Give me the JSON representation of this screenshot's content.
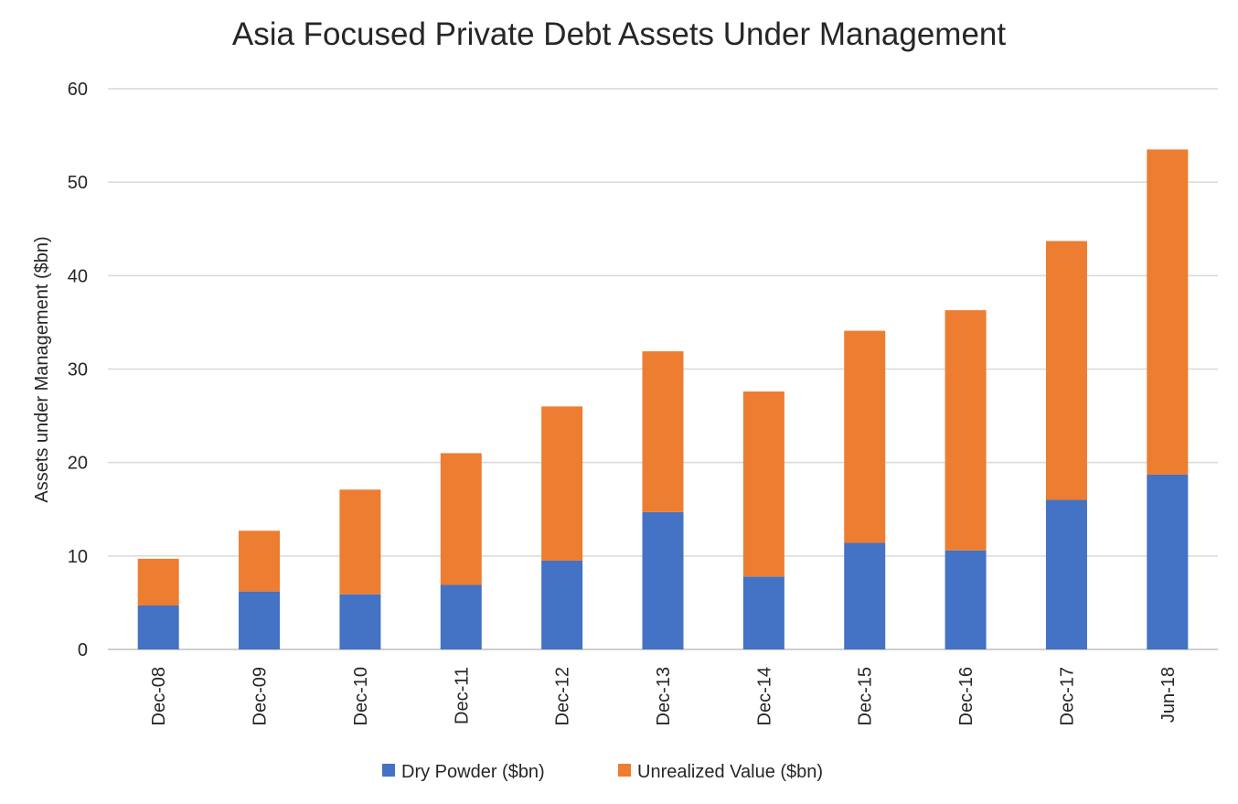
{
  "chart_data": {
    "type": "bar",
    "stacked": true,
    "title": "Asia Focused Private Debt Assets Under Management",
    "xlabel": "",
    "ylabel": "Assets under Management ($bn)",
    "ylim": [
      0,
      60
    ],
    "yticks": [
      0,
      10,
      20,
      30,
      40,
      50,
      60
    ],
    "grid": true,
    "legend_position": "bottom",
    "categories": [
      "Dec-08",
      "Dec-09",
      "Dec-10",
      "Dec-11",
      "Dec-12",
      "Dec-13",
      "Dec-14",
      "Dec-15",
      "Dec-16",
      "Dec-17",
      "Jun-18"
    ],
    "series": [
      {
        "name": "Dry Powder ($bn)",
        "color": "#4472C4",
        "values": [
          4.7,
          6.2,
          5.9,
          6.9,
          9.5,
          14.7,
          7.8,
          11.4,
          10.6,
          16.0,
          18.7
        ]
      },
      {
        "name": "Unrealized Value ($bn)",
        "color": "#ED7D31",
        "values": [
          5.0,
          6.5,
          11.2,
          14.1,
          16.5,
          17.2,
          19.8,
          22.7,
          25.7,
          27.7,
          34.8
        ]
      }
    ]
  }
}
